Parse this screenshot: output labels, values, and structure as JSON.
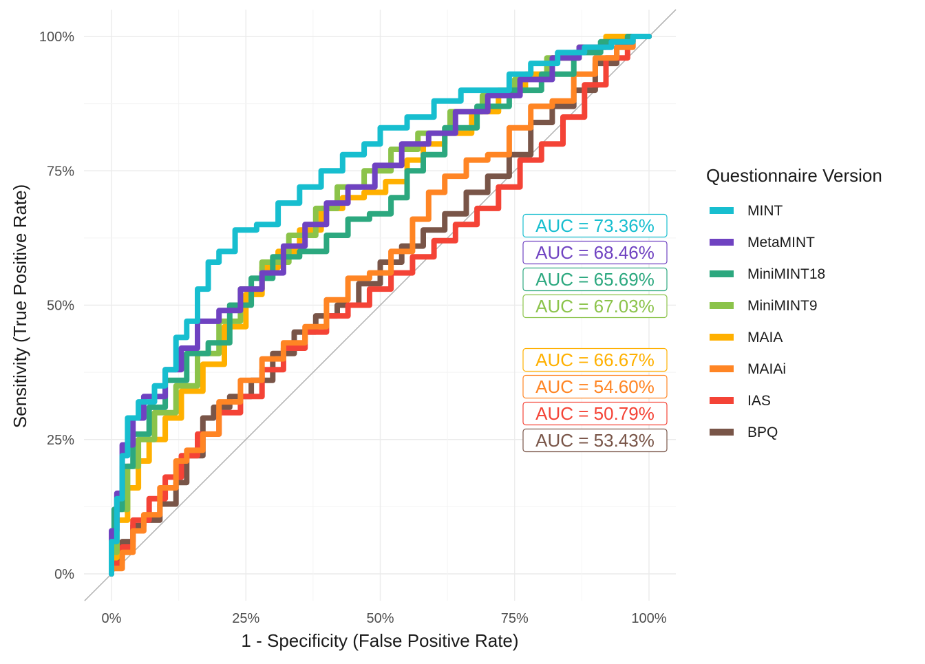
{
  "chart_data": {
    "type": "line",
    "title": "",
    "xlabel": "1 - Specificity (False Positive Rate)",
    "ylabel": "Sensitivity (True Positive Rate)",
    "xlim": [
      0,
      1
    ],
    "ylim": [
      0,
      1
    ],
    "x_ticks": [
      "0%",
      "25%",
      "50%",
      "75%",
      "100%"
    ],
    "y_ticks": [
      "0%",
      "25%",
      "50%",
      "75%",
      "100%"
    ],
    "grid": true,
    "diagonal_reference_line": true,
    "legend": {
      "title": "Questionnaire Version",
      "position": "right"
    },
    "series": [
      {
        "name": "MINT",
        "color": "#17becf",
        "auc_label": "AUC = 73.36%",
        "points": [
          [
            0,
            0
          ],
          [
            0.01,
            0.06
          ],
          [
            0.02,
            0.14
          ],
          [
            0.03,
            0.22
          ],
          [
            0.05,
            0.29
          ],
          [
            0.08,
            0.32
          ],
          [
            0.1,
            0.35
          ],
          [
            0.12,
            0.38
          ],
          [
            0.14,
            0.44
          ],
          [
            0.16,
            0.47
          ],
          [
            0.18,
            0.53
          ],
          [
            0.2,
            0.58
          ],
          [
            0.23,
            0.6
          ],
          [
            0.27,
            0.64
          ],
          [
            0.31,
            0.65
          ],
          [
            0.35,
            0.69
          ],
          [
            0.39,
            0.72
          ],
          [
            0.43,
            0.75
          ],
          [
            0.47,
            0.78
          ],
          [
            0.5,
            0.8
          ],
          [
            0.55,
            0.83
          ],
          [
            0.6,
            0.85
          ],
          [
            0.65,
            0.88
          ],
          [
            0.7,
            0.9
          ],
          [
            0.74,
            0.9
          ],
          [
            0.78,
            0.93
          ],
          [
            0.83,
            0.95
          ],
          [
            0.88,
            0.97
          ],
          [
            0.93,
            0.98
          ],
          [
            0.97,
            0.99
          ],
          [
            1,
            1
          ]
        ]
      },
      {
        "name": "MetaMINT",
        "color": "#6f42c1",
        "auc_label": "AUC = 68.46%",
        "points": [
          [
            0,
            0
          ],
          [
            0.01,
            0.08
          ],
          [
            0.02,
            0.15
          ],
          [
            0.04,
            0.24
          ],
          [
            0.06,
            0.29
          ],
          [
            0.1,
            0.33
          ],
          [
            0.13,
            0.38
          ],
          [
            0.16,
            0.42
          ],
          [
            0.2,
            0.47
          ],
          [
            0.24,
            0.49
          ],
          [
            0.28,
            0.53
          ],
          [
            0.32,
            0.56
          ],
          [
            0.36,
            0.61
          ],
          [
            0.4,
            0.65
          ],
          [
            0.44,
            0.69
          ],
          [
            0.49,
            0.72
          ],
          [
            0.54,
            0.76
          ],
          [
            0.59,
            0.8
          ],
          [
            0.64,
            0.82
          ],
          [
            0.7,
            0.86
          ],
          [
            0.76,
            0.89
          ],
          [
            0.82,
            0.92
          ],
          [
            0.87,
            0.96
          ],
          [
            0.93,
            0.98
          ],
          [
            0.97,
            0.99
          ],
          [
            1,
            1
          ]
        ]
      },
      {
        "name": "MiniMINT18",
        "color": "#2ca87f",
        "auc_label": "AUC = 65.69%",
        "points": [
          [
            0,
            0
          ],
          [
            0.005,
            0.06
          ],
          [
            0.02,
            0.12
          ],
          [
            0.04,
            0.2
          ],
          [
            0.07,
            0.26
          ],
          [
            0.1,
            0.31
          ],
          [
            0.14,
            0.36
          ],
          [
            0.18,
            0.41
          ],
          [
            0.22,
            0.43
          ],
          [
            0.26,
            0.5
          ],
          [
            0.3,
            0.55
          ],
          [
            0.35,
            0.59
          ],
          [
            0.4,
            0.6
          ],
          [
            0.44,
            0.63
          ],
          [
            0.48,
            0.66
          ],
          [
            0.52,
            0.67
          ],
          [
            0.55,
            0.7
          ],
          [
            0.58,
            0.75
          ],
          [
            0.62,
            0.78
          ],
          [
            0.68,
            0.83
          ],
          [
            0.74,
            0.87
          ],
          [
            0.8,
            0.9
          ],
          [
            0.86,
            0.93
          ],
          [
            0.91,
            0.97
          ],
          [
            0.96,
            0.99
          ],
          [
            1,
            1
          ]
        ]
      },
      {
        "name": "MiniMINT9",
        "color": "#8bc34a",
        "auc_label": "AUC = 67.03%",
        "points": [
          [
            0,
            0
          ],
          [
            0.01,
            0.04
          ],
          [
            0.03,
            0.12
          ],
          [
            0.05,
            0.2
          ],
          [
            0.08,
            0.25
          ],
          [
            0.12,
            0.3
          ],
          [
            0.16,
            0.35
          ],
          [
            0.2,
            0.41
          ],
          [
            0.24,
            0.47
          ],
          [
            0.28,
            0.53
          ],
          [
            0.33,
            0.58
          ],
          [
            0.38,
            0.63
          ],
          [
            0.42,
            0.68
          ],
          [
            0.47,
            0.72
          ],
          [
            0.52,
            0.75
          ],
          [
            0.57,
            0.79
          ],
          [
            0.63,
            0.82
          ],
          [
            0.69,
            0.86
          ],
          [
            0.75,
            0.89
          ],
          [
            0.81,
            0.92
          ],
          [
            0.87,
            0.96
          ],
          [
            0.92,
            0.98
          ],
          [
            0.97,
            0.99
          ],
          [
            1,
            1
          ]
        ]
      },
      {
        "name": "MAIA",
        "color": "#ffb000",
        "auc_label": "AUC = 66.67%",
        "points": [
          [
            0,
            0
          ],
          [
            0.01,
            0.03
          ],
          [
            0.03,
            0.1
          ],
          [
            0.05,
            0.16
          ],
          [
            0.07,
            0.21
          ],
          [
            0.1,
            0.25
          ],
          [
            0.13,
            0.29
          ],
          [
            0.17,
            0.34
          ],
          [
            0.21,
            0.39
          ],
          [
            0.25,
            0.46
          ],
          [
            0.28,
            0.52
          ],
          [
            0.31,
            0.57
          ],
          [
            0.35,
            0.6
          ],
          [
            0.39,
            0.64
          ],
          [
            0.43,
            0.68
          ],
          [
            0.47,
            0.7
          ],
          [
            0.51,
            0.71
          ],
          [
            0.55,
            0.73
          ],
          [
            0.58,
            0.77
          ],
          [
            0.62,
            0.8
          ],
          [
            0.67,
            0.82
          ],
          [
            0.72,
            0.86
          ],
          [
            0.77,
            0.9
          ],
          [
            0.82,
            0.93
          ],
          [
            0.87,
            0.96
          ],
          [
            0.92,
            0.98
          ],
          [
            0.96,
            1
          ],
          [
            1,
            1
          ]
        ]
      },
      {
        "name": "MAIAi",
        "color": "#ff8524",
        "auc_label": "AUC = 54.60%",
        "points": [
          [
            0,
            0
          ],
          [
            0.02,
            0.01
          ],
          [
            0.04,
            0.04
          ],
          [
            0.06,
            0.08
          ],
          [
            0.09,
            0.11
          ],
          [
            0.12,
            0.16
          ],
          [
            0.14,
            0.21
          ],
          [
            0.17,
            0.23
          ],
          [
            0.2,
            0.26
          ],
          [
            0.24,
            0.32
          ],
          [
            0.28,
            0.36
          ],
          [
            0.32,
            0.4
          ],
          [
            0.36,
            0.43
          ],
          [
            0.4,
            0.46
          ],
          [
            0.44,
            0.51
          ],
          [
            0.48,
            0.55
          ],
          [
            0.52,
            0.56
          ],
          [
            0.56,
            0.6
          ],
          [
            0.59,
            0.66
          ],
          [
            0.62,
            0.71
          ],
          [
            0.66,
            0.74
          ],
          [
            0.7,
            0.77
          ],
          [
            0.74,
            0.78
          ],
          [
            0.78,
            0.83
          ],
          [
            0.82,
            0.87
          ],
          [
            0.86,
            0.88
          ],
          [
            0.9,
            0.93
          ],
          [
            0.94,
            0.96
          ],
          [
            0.97,
            0.98
          ],
          [
            1,
            1
          ]
        ]
      },
      {
        "name": "IAS",
        "color": "#f44336",
        "auc_label": "AUC = 50.79%",
        "points": [
          [
            0,
            0
          ],
          [
            0.02,
            0.02
          ],
          [
            0.04,
            0.05
          ],
          [
            0.07,
            0.1
          ],
          [
            0.1,
            0.14
          ],
          [
            0.13,
            0.18
          ],
          [
            0.16,
            0.22
          ],
          [
            0.2,
            0.26
          ],
          [
            0.24,
            0.3
          ],
          [
            0.28,
            0.33
          ],
          [
            0.32,
            0.38
          ],
          [
            0.36,
            0.42
          ],
          [
            0.4,
            0.45
          ],
          [
            0.44,
            0.48
          ],
          [
            0.48,
            0.5
          ],
          [
            0.52,
            0.53
          ],
          [
            0.56,
            0.56
          ],
          [
            0.6,
            0.59
          ],
          [
            0.64,
            0.62
          ],
          [
            0.68,
            0.65
          ],
          [
            0.72,
            0.68
          ],
          [
            0.76,
            0.72
          ],
          [
            0.8,
            0.77
          ],
          [
            0.84,
            0.8
          ],
          [
            0.88,
            0.85
          ],
          [
            0.92,
            0.91
          ],
          [
            0.96,
            0.96
          ],
          [
            1,
            1
          ]
        ]
      },
      {
        "name": "BPQ",
        "color": "#795548",
        "auc_label": "AUC = 53.43%",
        "points": [
          [
            0,
            0
          ],
          [
            0.02,
            0.03
          ],
          [
            0.04,
            0.06
          ],
          [
            0.06,
            0.09
          ],
          [
            0.09,
            0.1
          ],
          [
            0.12,
            0.13
          ],
          [
            0.14,
            0.17
          ],
          [
            0.17,
            0.22
          ],
          [
            0.19,
            0.29
          ],
          [
            0.22,
            0.31
          ],
          [
            0.26,
            0.33
          ],
          [
            0.3,
            0.36
          ],
          [
            0.34,
            0.41
          ],
          [
            0.38,
            0.45
          ],
          [
            0.42,
            0.48
          ],
          [
            0.46,
            0.5
          ],
          [
            0.5,
            0.54
          ],
          [
            0.54,
            0.58
          ],
          [
            0.58,
            0.61
          ],
          [
            0.62,
            0.64
          ],
          [
            0.66,
            0.67
          ],
          [
            0.7,
            0.71
          ],
          [
            0.74,
            0.74
          ],
          [
            0.78,
            0.78
          ],
          [
            0.82,
            0.84
          ],
          [
            0.86,
            0.87
          ],
          [
            0.9,
            0.9
          ],
          [
            0.94,
            0.95
          ],
          [
            0.97,
            0.98
          ],
          [
            1,
            1
          ]
        ]
      }
    ]
  }
}
